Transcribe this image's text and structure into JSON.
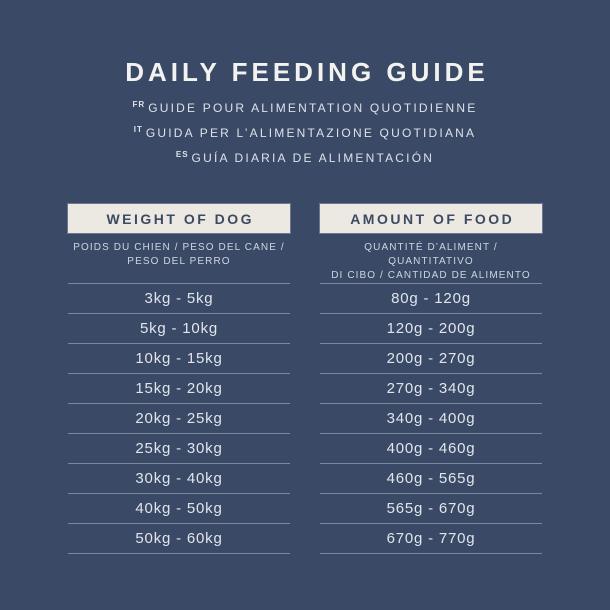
{
  "title": "DAILY FEEDING GUIDE",
  "subtitles": [
    {
      "lang": "FR",
      "text": "GUIDE POUR ALIMENTATION QUOTIDIENNE"
    },
    {
      "lang": "IT",
      "text": "GUIDA PER L’ALIMENTAZIONE QUOTIDIANA"
    },
    {
      "lang": "ES",
      "text": "GUÍA DIARIA DE ALIMENTACIÓN"
    }
  ],
  "weight_column": {
    "header": "WEIGHT OF DOG",
    "subheader_line1": "POIDS DU CHIEN / PESO DEL CANE /",
    "subheader_line2": "PESO DEL PERRO",
    "rows": [
      "3kg - 5kg",
      "5kg - 10kg",
      "10kg - 15kg",
      "15kg - 20kg",
      "20kg - 25kg",
      "25kg - 30kg",
      "30kg - 40kg",
      "40kg - 50kg",
      "50kg - 60kg"
    ]
  },
  "food_column": {
    "header": "AMOUNT OF FOOD",
    "subheader_line1": "QUANTITÉ D’ALIMENT / QUANTITATIVO",
    "subheader_line2": "DI CIBO / CANTIDAD DE ALIMENTO",
    "rows": [
      "80g - 120g",
      "120g - 200g",
      "200g - 270g",
      "270g - 340g",
      "340g - 400g",
      "400g - 460g",
      "460g - 565g",
      "565g - 670g",
      "670g - 770g"
    ]
  },
  "colors": {
    "background": "#3a4a66",
    "header_box": "#ebe9e1",
    "header_text": "#3d4a63",
    "body_text": "#e1e5eb",
    "divider": "#8d9ab0"
  }
}
